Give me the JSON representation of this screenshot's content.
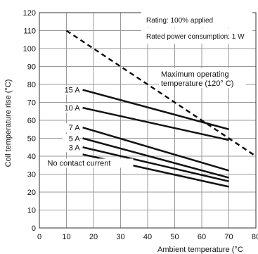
{
  "chart_data": {
    "type": "line",
    "xlabel": "Ambient temperature (°C",
    "ylabel": "Coil temperature rise (°C)",
    "xlim": [
      0,
      80
    ],
    "ylim": [
      0,
      120
    ],
    "x_ticks": [
      "0",
      "10",
      "20",
      "30",
      "40",
      "50",
      "60",
      "70",
      "80"
    ],
    "y_ticks": [
      "0",
      "10",
      "20",
      "30",
      "40",
      "50",
      "60",
      "70",
      "80",
      "90",
      "100",
      "110",
      "120"
    ],
    "grid": true,
    "legend": {
      "rating": "Rating: 100% applied",
      "power": "Rated power consumption: 1 W"
    },
    "limit_line": {
      "label_line1": "Maximum operating",
      "label_line2": "temperature (120° C)",
      "x": [
        10,
        80
      ],
      "y": [
        110,
        40
      ],
      "style": "dashed"
    },
    "series": [
      {
        "name": "15 A",
        "x": [
          16,
          70
        ],
        "y": [
          77,
          55
        ]
      },
      {
        "name": "10 A",
        "x": [
          16,
          70
        ],
        "y": [
          67,
          49
        ]
      },
      {
        "name": "7 A",
        "x": [
          16,
          70
        ],
        "y": [
          56,
          32
        ]
      },
      {
        "name": "5 A",
        "x": [
          16,
          70
        ],
        "y": [
          50,
          28
        ]
      },
      {
        "name": "3 A",
        "x": [
          16,
          70
        ],
        "y": [
          45,
          26
        ]
      },
      {
        "name": "No contact current",
        "x": [
          16,
          70
        ],
        "y": [
          41,
          23
        ]
      }
    ]
  }
}
